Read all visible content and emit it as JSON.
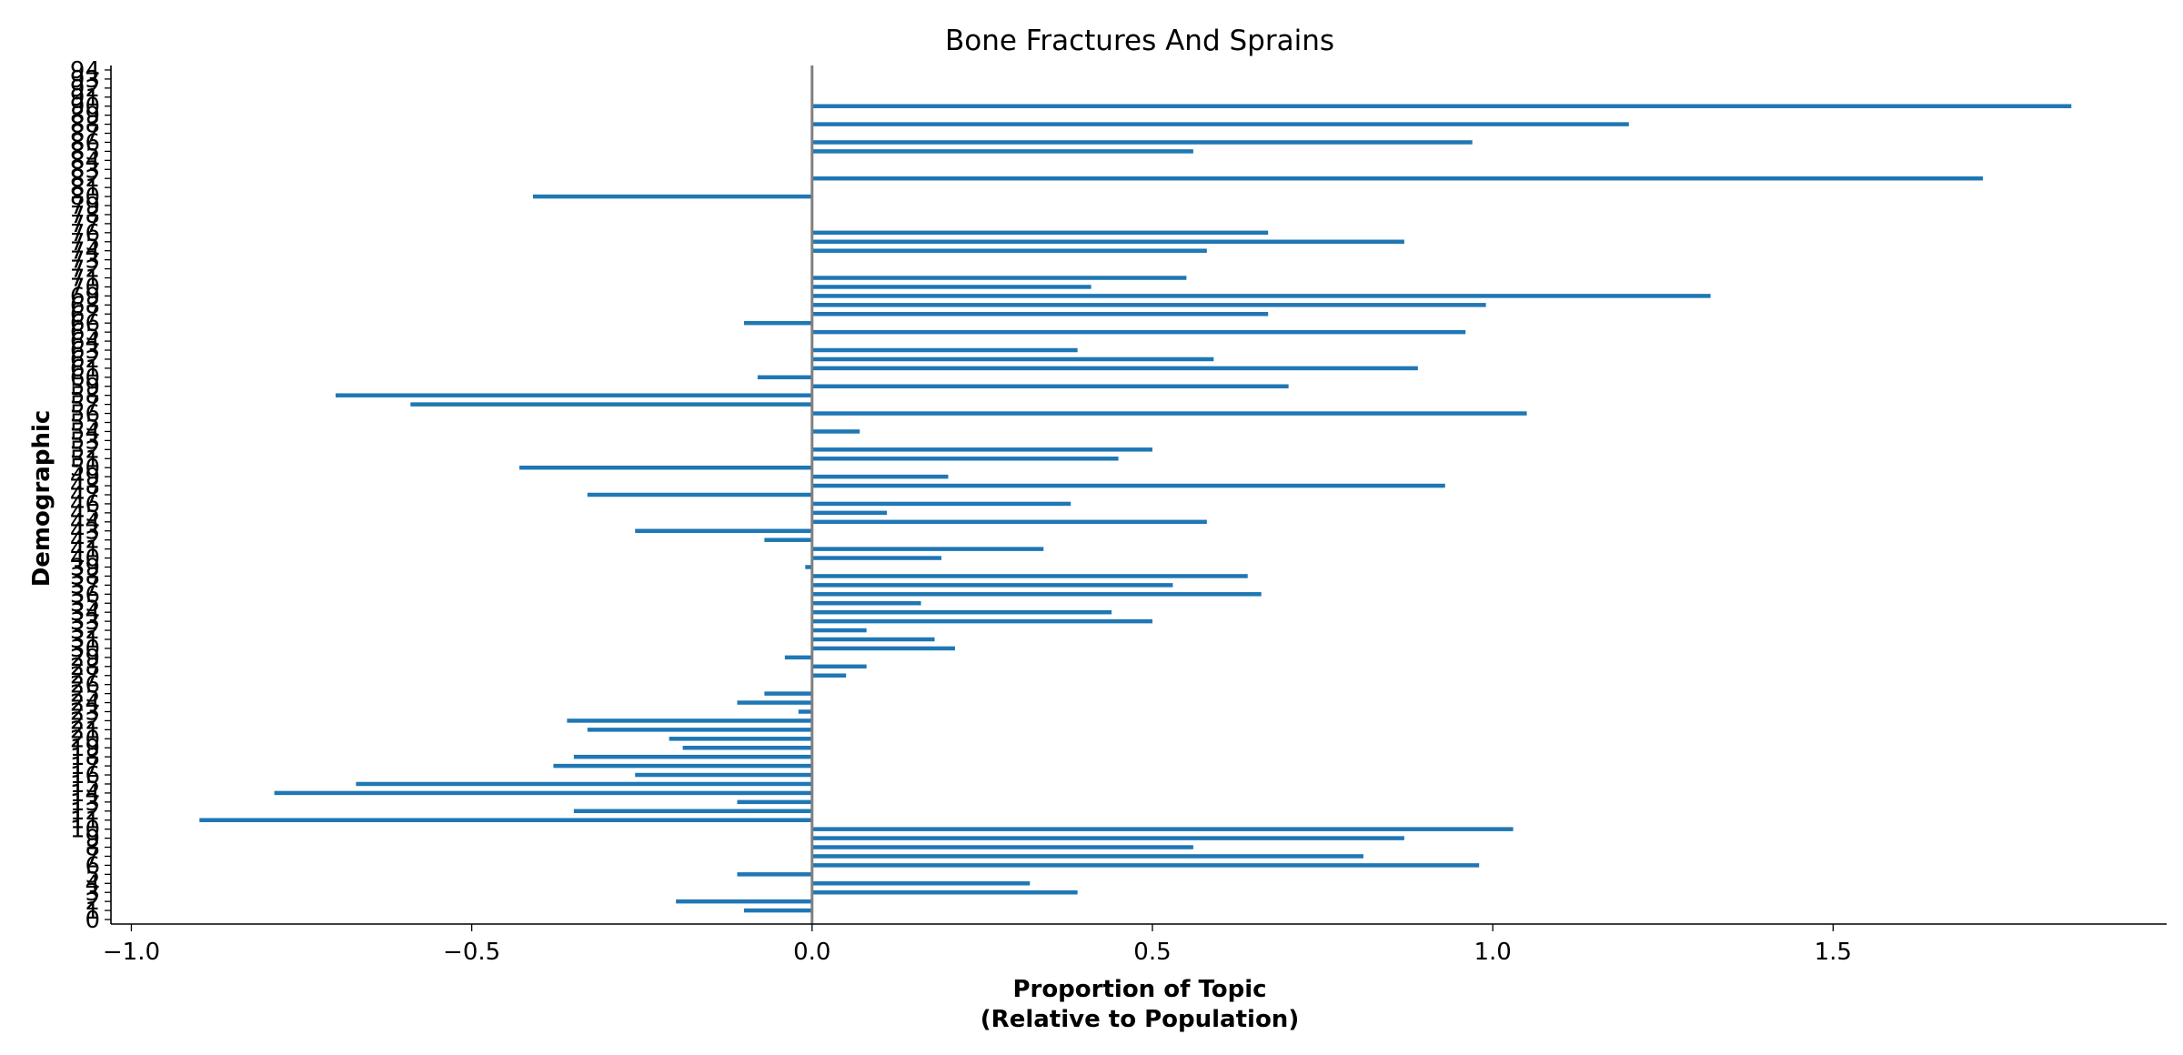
{
  "chart_data": {
    "type": "bar",
    "orientation": "horizontal",
    "title": "Bone Fractures And Sprains",
    "xlabel_lines": [
      "Proportion of Topic",
      "(Relative to Population)"
    ],
    "ylabel": "Demographic",
    "xlim": [
      -1.03,
      1.99
    ],
    "ylim": [
      -0.5,
      94.5
    ],
    "xticks": [
      -1.0,
      -0.5,
      0.0,
      0.5,
      1.0,
      1.5
    ],
    "xtick_labels": [
      "−1.0",
      "−0.5",
      "0.0",
      "0.5",
      "1.0",
      "1.5"
    ],
    "categories": [
      "0",
      "1",
      "2",
      "3",
      "4",
      "5",
      "6",
      "7",
      "8",
      "9",
      "10",
      "11",
      "12",
      "13",
      "14",
      "15",
      "16",
      "17",
      "18",
      "19",
      "20",
      "21",
      "22",
      "23",
      "24",
      "25",
      "26",
      "27",
      "28",
      "29",
      "30",
      "31",
      "32",
      "33",
      "34",
      "35",
      "36",
      "37",
      "38",
      "39",
      "40",
      "41",
      "42",
      "43",
      "44",
      "45",
      "46",
      "47",
      "48",
      "49",
      "50",
      "51",
      "52",
      "53",
      "54",
      "55",
      "56",
      "57",
      "58",
      "59",
      "60",
      "61",
      "62",
      "63",
      "64",
      "65",
      "66",
      "67",
      "68",
      "69",
      "70",
      "71",
      "72",
      "73",
      "74",
      "75",
      "76",
      "77",
      "78",
      "79",
      "80",
      "81",
      "82",
      "83",
      "84",
      "85",
      "86",
      "87",
      "88",
      "89",
      "90",
      "91",
      "92",
      "93",
      "94"
    ],
    "values": [
      0,
      -0.1,
      -0.2,
      0.39,
      0.32,
      -0.11,
      0.98,
      0.81,
      0.56,
      0.87,
      1.03,
      -0.9,
      -0.35,
      -0.11,
      -0.79,
      -0.67,
      -0.26,
      -0.38,
      -0.35,
      -0.19,
      -0.21,
      -0.33,
      -0.36,
      -0.02,
      -0.11,
      -0.07,
      0,
      0.05,
      0.08,
      -0.04,
      0.21,
      0.18,
      0.08,
      0.5,
      0.44,
      0.16,
      0.66,
      0.53,
      0.64,
      -0.01,
      0.19,
      0.34,
      -0.07,
      -0.26,
      0.58,
      0.11,
      0.38,
      -0.33,
      0.93,
      0.2,
      -0.43,
      0.45,
      0.5,
      0,
      0.07,
      0,
      1.05,
      -0.59,
      -0.7,
      0.7,
      -0.08,
      0.89,
      0.59,
      0.39,
      0,
      0.96,
      -0.1,
      0.67,
      0.99,
      1.32,
      0.41,
      0.55,
      0,
      0,
      0.58,
      0.87,
      0.67,
      0,
      0,
      0,
      -0.41,
      0,
      1.72,
      0,
      0,
      0.56,
      0.97,
      0,
      1.2,
      0,
      1.85,
      0,
      0,
      0,
      0
    ],
    "bar_color": "#1f77b4",
    "zero_line_color": "#808080",
    "grid": false
  }
}
